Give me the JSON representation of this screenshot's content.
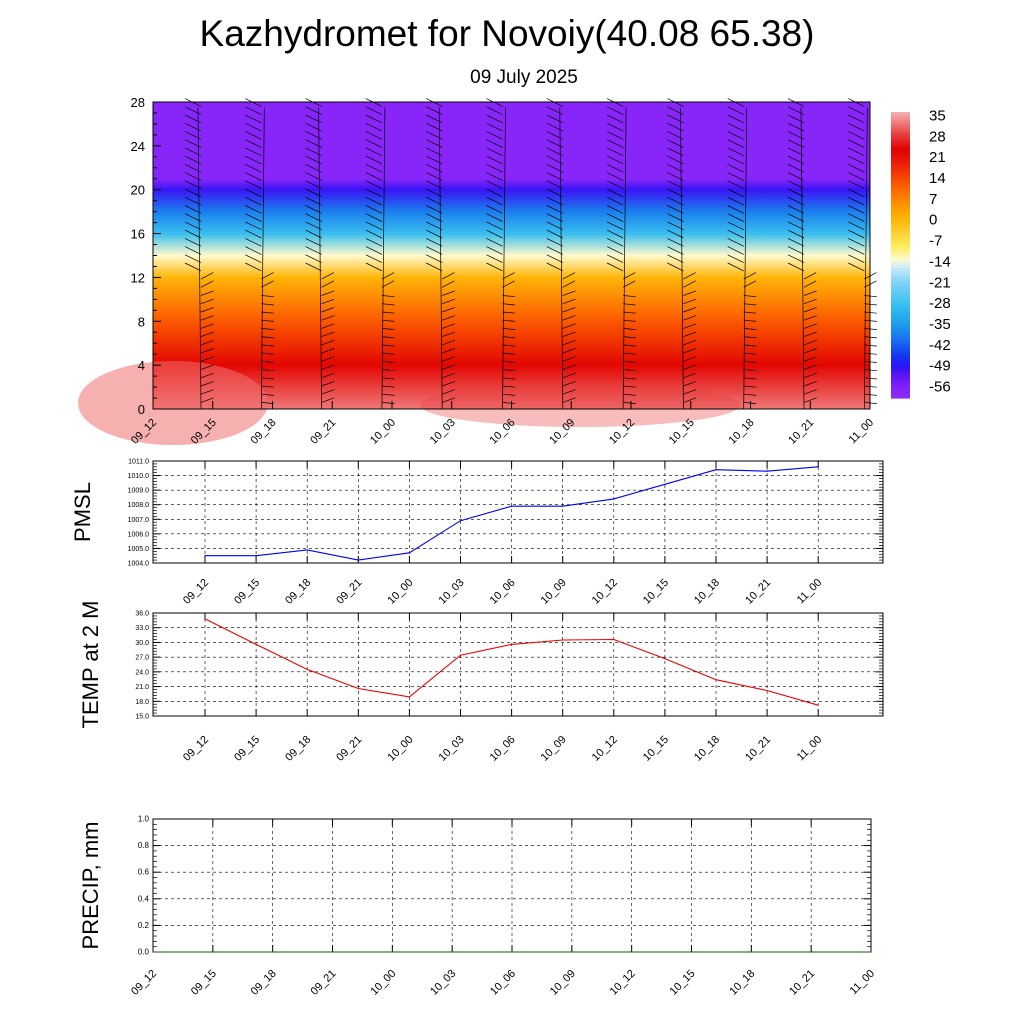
{
  "title": "Kazhydromet for Novoiy(40.08 65.38)",
  "subtitle": "09 July 2025",
  "chart_data": [
    {
      "type": "heatmap",
      "title": "Kazhydromet for Novoiy(40.08 65.38)",
      "subtitle": "09 July 2025",
      "x_ticks": [
        "09_12",
        "09_15",
        "09_18",
        "09_21",
        "10_00",
        "10_03",
        "10_06",
        "10_09",
        "10_12",
        "10_15",
        "10_18",
        "10_21",
        "11_00"
      ],
      "y_ticks": [
        0,
        4,
        8,
        12,
        16,
        20,
        24,
        28
      ],
      "ylim": [
        0,
        28
      ],
      "colorbar_labels": [
        "35",
        "28",
        "21",
        "14",
        "7",
        "0",
        "-7",
        "-14",
        "-21",
        "-28",
        "-35",
        "-42",
        "-49",
        "-56"
      ],
      "colorbar_range": [
        -60,
        39
      ],
      "temperature_profile": [
        {
          "level": 0,
          "value": 35
        },
        {
          "level": 4,
          "value": 25
        },
        {
          "level": 8,
          "value": 14
        },
        {
          "level": 12,
          "value": 2
        },
        {
          "level": 14,
          "value": -12
        },
        {
          "level": 16,
          "value": -28
        },
        {
          "level": 18,
          "value": -38
        },
        {
          "level": 20,
          "value": -50
        },
        {
          "level": 21,
          "value": -58
        },
        {
          "level": 24,
          "value": -58
        },
        {
          "level": 28,
          "value": -58
        }
      ],
      "wind_barbs": true
    },
    {
      "type": "line",
      "ylabel": "PMSL",
      "x_ticks": [
        "09_12",
        "09_15",
        "09_18",
        "09_21",
        "10_00",
        "10_03",
        "10_06",
        "10_09",
        "10_12",
        "10_15",
        "10_18",
        "10_21",
        "11_00"
      ],
      "y_ticks": [
        "1004.0",
        "1005.0",
        "1006.0",
        "1007.0",
        "1008.0",
        "1009.0",
        "1010.0",
        "1011.0"
      ],
      "ylim": [
        1004.0,
        1011.0
      ],
      "grid": true,
      "series": [
        {
          "color": "#0000ee",
          "values": [
            1004.5,
            1004.5,
            1004.9,
            1004.2,
            1004.7,
            1006.9,
            1007.9,
            1007.9,
            1008.4,
            1009.4,
            1010.4,
            1010.3,
            1010.6
          ]
        }
      ]
    },
    {
      "type": "line",
      "ylabel": "TEMP at 2 M",
      "x_ticks": [
        "09_12",
        "09_15",
        "09_18",
        "09_21",
        "10_00",
        "10_03",
        "10_06",
        "10_09",
        "10_12",
        "10_15",
        "10_18",
        "10_21",
        "11_00"
      ],
      "y_ticks": [
        "15.0",
        "18.0",
        "21.0",
        "24.0",
        "27.0",
        "30.0",
        "33.0",
        "36.0"
      ],
      "ylim": [
        15.0,
        36.0
      ],
      "grid": true,
      "series": [
        {
          "color": "#ee0000",
          "values": [
            34.8,
            29.6,
            24.5,
            20.6,
            18.9,
            27.4,
            29.6,
            30.5,
            30.6,
            26.7,
            22.4,
            20.2,
            17.2
          ]
        }
      ]
    },
    {
      "type": "line",
      "ylabel": "PRECIP, mm",
      "x_ticks": [
        "09_12",
        "09_15",
        "09_18",
        "09_21",
        "10_00",
        "10_03",
        "10_06",
        "10_09",
        "10_12",
        "10_15",
        "10_18",
        "10_21",
        "11_00"
      ],
      "y_ticks": [
        "0.0",
        "0.2",
        "0.4",
        "0.6",
        "0.8",
        "1.0"
      ],
      "ylim": [
        0.0,
        1.0
      ],
      "grid": true,
      "series": [
        {
          "color": "#006400",
          "values": [
            0,
            0,
            0,
            0,
            0,
            0,
            0,
            0,
            0,
            0,
            0,
            0,
            0
          ]
        }
      ]
    }
  ]
}
